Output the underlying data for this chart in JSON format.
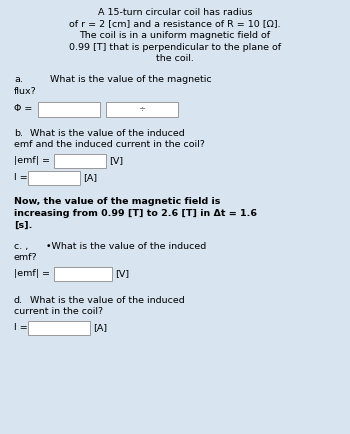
{
  "bg_color": "#d8e4f0",
  "text_color": "#000000",
  "box_color": "#ffffff",
  "title_line1": "A 15-turn circular coil has radius",
  "title_line2": "of r = 2 [cm] and a resistance of R = 10 [Ω].",
  "title_line3": "The coil is in a uniform magnetic field of",
  "title_line4": "0.99 [T] that is perpendicular to the plane of",
  "title_line5": "the coil.",
  "a_label": "a.",
  "a_q1": "What is the value of the magnetic",
  "a_q2": "flux?",
  "a_phi": "Φ =",
  "b_label": "b.",
  "b_q1": "What is the value of the induced",
  "b_q2": "emf and the induced current in the coil?",
  "b_emf_label": "|emf| =",
  "b_V": "[V]",
  "b_I_label": "I =",
  "b_A": "[A]",
  "bold1": "Now, the value of the magnetic field is",
  "bold2": "increasing from 0.99 [T] to 2.6 [T] in Δt = 1.6",
  "bold3": "[s].",
  "c_label": "c. ,",
  "c_bullet": "•What is the value of the induced",
  "c_q2": "emf?",
  "c_emf_label": "|emf| =",
  "c_V": "[V]",
  "d_label": "d.",
  "d_q1": "What is the value of the induced",
  "d_q2": "current in the coil?",
  "d_I_label": "I =",
  "d_A": "[A]",
  "fs": 6.8,
  "lh": 11.5
}
